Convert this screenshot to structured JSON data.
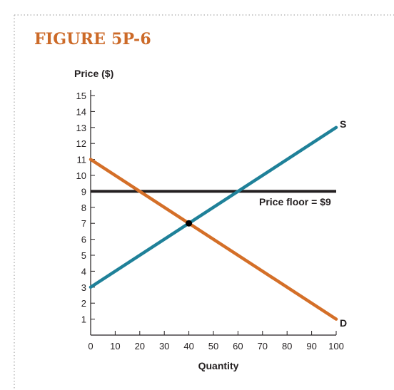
{
  "figure_label": "FIGURE 5P-6",
  "chart_data": {
    "type": "line",
    "title": "",
    "xlabel": "Quantity",
    "ylabel": "Price ($)",
    "xlim": [
      0,
      100
    ],
    "ylim": [
      0,
      15
    ],
    "x_ticks": [
      0,
      10,
      20,
      30,
      40,
      50,
      60,
      70,
      80,
      90,
      100
    ],
    "y_ticks": [
      1,
      2,
      3,
      4,
      5,
      6,
      7,
      8,
      9,
      10,
      11,
      12,
      13,
      14,
      15
    ],
    "grid": false,
    "series": [
      {
        "name": "S",
        "color": "#1f8199",
        "x": [
          0,
          100
        ],
        "y": [
          3,
          13
        ]
      },
      {
        "name": "D",
        "color": "#d46f28",
        "x": [
          0,
          100
        ],
        "y": [
          11,
          1
        ]
      }
    ],
    "price_floor": {
      "label": "Price floor = $9",
      "value": 9,
      "x": [
        0,
        100
      ],
      "color": "#231f20"
    },
    "equilibrium": {
      "x": 40,
      "y": 7
    }
  },
  "colors": {
    "accent": "#cc6a28",
    "border_dots": "#b9b9b9",
    "axis": "#231f20"
  }
}
